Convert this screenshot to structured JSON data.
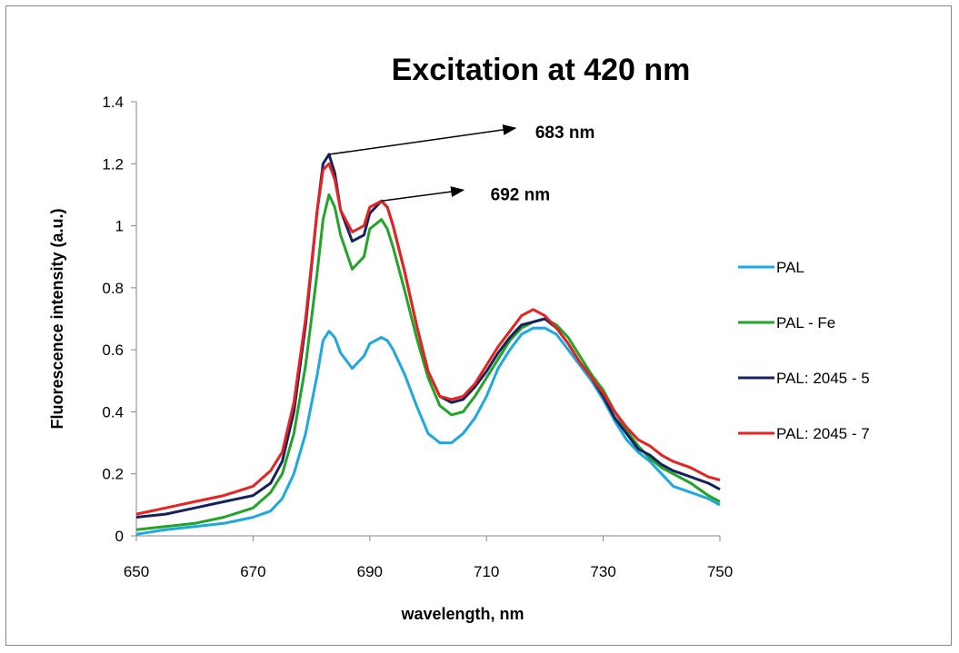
{
  "chart_data": {
    "type": "line",
    "title": "Excitation at 420 nm",
    "xlabel": "wavelength, nm",
    "ylabel": "Fluorescence intensity (a.u.)",
    "xlim": [
      650,
      750
    ],
    "ylim": [
      0,
      1.4
    ],
    "x_ticks": [
      "650",
      "670",
      "690",
      "710",
      "730",
      "750"
    ],
    "y_ticks": [
      "0",
      "0.2",
      "0.4",
      "0.6",
      "0.8",
      "1",
      "1.2",
      "1.4"
    ],
    "grid": false,
    "legend_position": "right",
    "annotations": [
      {
        "text": "683 nm",
        "x": 683,
        "y": 1.23
      },
      {
        "text": "692 nm",
        "x": 692,
        "y": 1.08
      }
    ],
    "x": [
      650,
      655,
      660,
      665,
      670,
      673,
      675,
      677,
      679,
      681,
      682,
      683,
      684,
      685,
      687,
      689,
      690,
      692,
      693,
      694,
      696,
      698,
      700,
      702,
      704,
      706,
      708,
      710,
      712,
      714,
      716,
      718,
      720,
      722,
      724,
      726,
      728,
      730,
      732,
      734,
      736,
      738,
      740,
      742,
      745,
      748,
      750
    ],
    "series": [
      {
        "name": "PAL",
        "color": "#1CA9E1",
        "values": [
          0.005,
          0.02,
          0.03,
          0.04,
          0.06,
          0.08,
          0.12,
          0.2,
          0.33,
          0.52,
          0.63,
          0.66,
          0.64,
          0.59,
          0.54,
          0.58,
          0.62,
          0.64,
          0.63,
          0.6,
          0.52,
          0.42,
          0.33,
          0.3,
          0.3,
          0.33,
          0.38,
          0.45,
          0.54,
          0.6,
          0.65,
          0.67,
          0.67,
          0.65,
          0.6,
          0.55,
          0.5,
          0.44,
          0.37,
          0.31,
          0.27,
          0.24,
          0.2,
          0.16,
          0.14,
          0.12,
          0.1
        ]
      },
      {
        "name": "PAL - Fe",
        "color": "#22A427",
        "values": [
          0.02,
          0.03,
          0.04,
          0.06,
          0.09,
          0.14,
          0.2,
          0.33,
          0.55,
          0.85,
          1.02,
          1.1,
          1.06,
          0.97,
          0.86,
          0.9,
          0.99,
          1.02,
          0.99,
          0.93,
          0.79,
          0.64,
          0.51,
          0.42,
          0.39,
          0.4,
          0.45,
          0.51,
          0.57,
          0.63,
          0.67,
          0.69,
          0.7,
          0.68,
          0.64,
          0.58,
          0.52,
          0.47,
          0.4,
          0.34,
          0.29,
          0.25,
          0.22,
          0.2,
          0.17,
          0.13,
          0.11
        ]
      },
      {
        "name": "PAL: 2045 - 5",
        "color": "#16225E",
        "values": [
          0.06,
          0.07,
          0.09,
          0.11,
          0.13,
          0.17,
          0.24,
          0.4,
          0.68,
          1.05,
          1.2,
          1.23,
          1.17,
          1.05,
          0.95,
          0.97,
          1.04,
          1.08,
          1.06,
          1.0,
          0.85,
          0.68,
          0.53,
          0.45,
          0.43,
          0.44,
          0.48,
          0.53,
          0.59,
          0.64,
          0.68,
          0.69,
          0.7,
          0.67,
          0.62,
          0.56,
          0.51,
          0.45,
          0.38,
          0.33,
          0.28,
          0.26,
          0.23,
          0.21,
          0.19,
          0.17,
          0.15
        ]
      },
      {
        "name": "PAL: 2045 - 7",
        "color": "#E8221F",
        "values": [
          0.07,
          0.09,
          0.11,
          0.13,
          0.16,
          0.21,
          0.27,
          0.43,
          0.7,
          1.05,
          1.18,
          1.2,
          1.15,
          1.05,
          0.98,
          1.0,
          1.06,
          1.08,
          1.06,
          1.0,
          0.85,
          0.68,
          0.53,
          0.45,
          0.44,
          0.45,
          0.49,
          0.55,
          0.61,
          0.66,
          0.71,
          0.73,
          0.71,
          0.67,
          0.62,
          0.56,
          0.51,
          0.46,
          0.4,
          0.35,
          0.31,
          0.29,
          0.26,
          0.24,
          0.22,
          0.19,
          0.18
        ]
      }
    ]
  }
}
